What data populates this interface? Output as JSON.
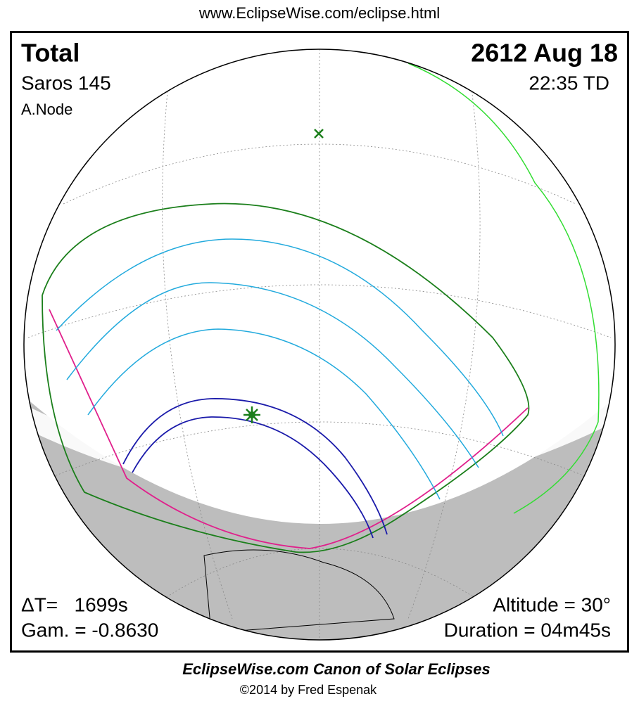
{
  "header": {
    "url": "www.EclipseWise.com/eclipse.html"
  },
  "info": {
    "type": "Total",
    "saros": "Saros 145",
    "node": "A.Node",
    "date": "2612 Aug 18",
    "time": "22:35 TD"
  },
  "stats": {
    "delta_t": "ΔT=   1699s",
    "gamma": "Gam. = -0.8630",
    "altitude": "Altitude = 30°",
    "duration": "Duration = 04m45s"
  },
  "footer": {
    "title": "EclipseWise.com Canon of Solar Eclipses",
    "copyright": "©2014 by Fred Espenak"
  }
}
